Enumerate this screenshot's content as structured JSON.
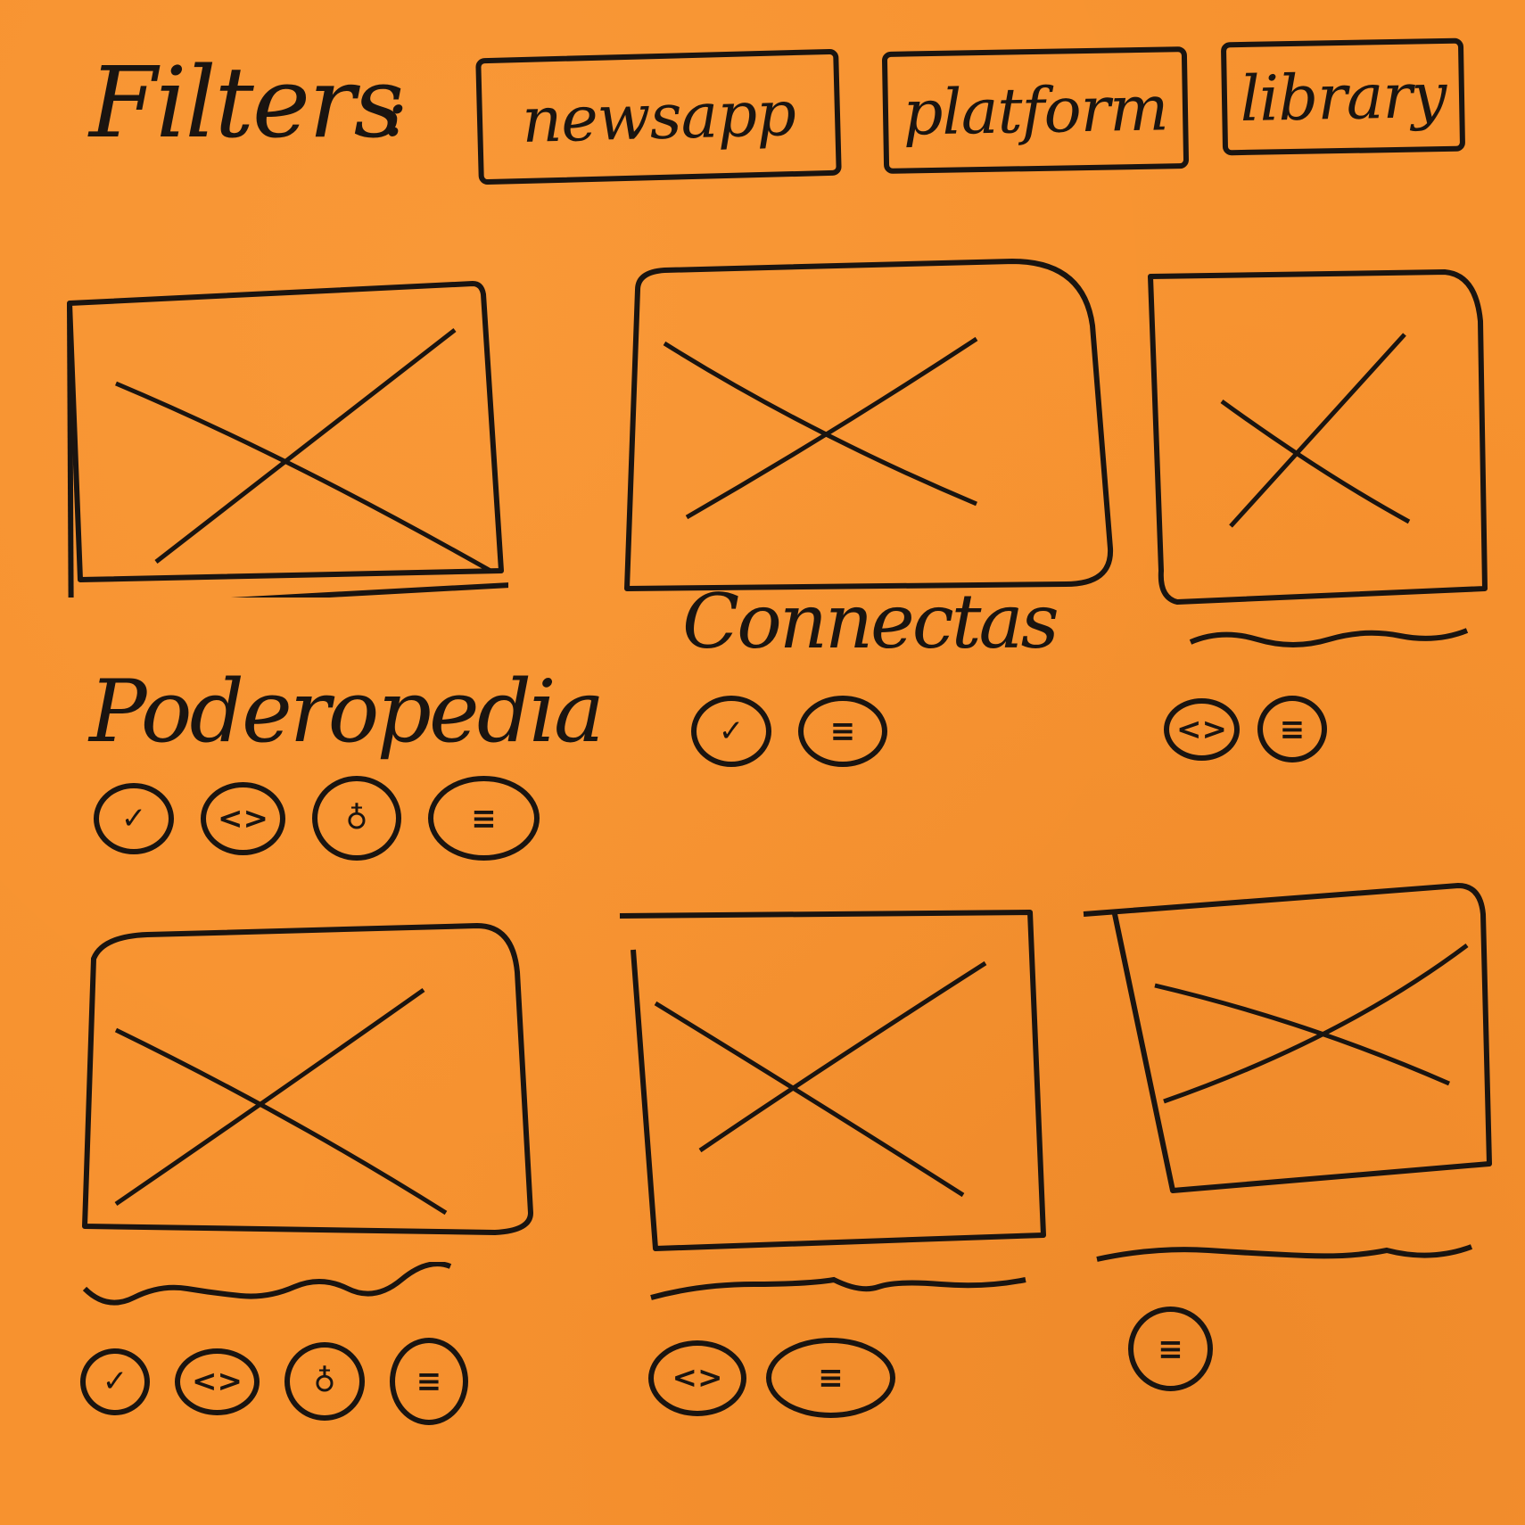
{
  "filters": {
    "label": "Filters",
    "colon": ":",
    "chips": [
      "newsapp",
      "platform",
      "library"
    ]
  },
  "cards": [
    {
      "title": "Poderopedia",
      "icons": [
        "check-icon",
        "code-icon",
        "github-icon",
        "docs-icon"
      ]
    },
    {
      "title": "Connectas",
      "icons": [
        "check-icon",
        "docs-icon"
      ]
    },
    {
      "title": "",
      "icons": [
        "code-icon",
        "docs-icon"
      ]
    },
    {
      "title": "",
      "icons": [
        "check-icon",
        "code-icon",
        "github-icon",
        "docs-icon"
      ]
    },
    {
      "title": "",
      "icons": [
        "code-icon",
        "docs-icon"
      ]
    },
    {
      "title": "",
      "icons": [
        "docs-icon"
      ]
    }
  ],
  "icon_glyphs": {
    "check-icon": "✓",
    "code-icon": "<>",
    "github-icon": "♁",
    "docs-icon": "≡"
  },
  "colors": {
    "paper": "#F7922F",
    "ink": "#1a1410"
  }
}
